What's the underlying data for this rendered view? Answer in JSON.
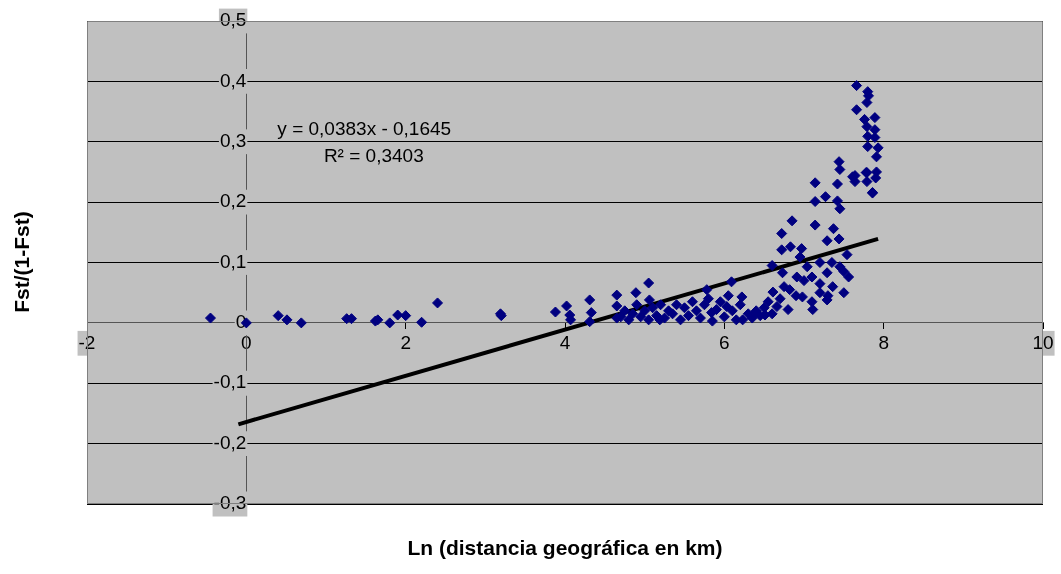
{
  "chart_data": {
    "type": "scatter",
    "xlabel": "Ln (distancia geográfica en km)",
    "ylabel": "Fst/(1-Fst)",
    "annotations": [
      "y = 0,0383x - 0,1645",
      "R² = 0,3403"
    ],
    "xlim": [
      -2,
      10
    ],
    "xticks": [
      -2,
      0,
      2,
      4,
      6,
      8,
      10
    ],
    "ylim": [
      -0.3,
      0.5
    ],
    "yticks": [
      {
        "value": -0.3,
        "label": "-0,3"
      },
      {
        "value": -0.2,
        "label": "-0,2"
      },
      {
        "value": -0.1,
        "label": "-0,1"
      },
      0,
      {
        "value": 0.1,
        "label": "0,1"
      },
      {
        "value": 0.2,
        "label": "0,2"
      },
      {
        "value": 0.3,
        "label": "0,3"
      },
      {
        "value": 0.4,
        "label": "0,4"
      },
      {
        "value": 0.5,
        "label": "0,5"
      }
    ],
    "grid": "y",
    "legend": false,
    "marker": "diamond",
    "series": [
      {
        "color": "#000080",
        "x": [
          -0.45,
          0,
          0.4,
          0.51,
          0.69,
          1.26,
          1.32,
          1.62,
          1.65,
          1.8,
          1.9,
          2.0,
          2.2,
          2.4,
          3.19,
          3.2,
          3.88,
          4.02,
          4.06,
          4.07,
          4.31,
          4.33,
          4.31,
          4.65,
          4.65,
          4.65,
          4.89,
          5.05,
          5.06,
          5.19,
          4.7,
          4.75,
          4.8,
          4.85,
          4.9,
          4.95,
          5.0,
          5.05,
          5.1,
          5.15,
          5.2,
          5.25,
          5.3,
          5.35,
          5.4,
          5.45,
          5.5,
          5.55,
          5.6,
          5.65,
          5.7,
          5.75,
          5.8,
          5.85,
          5.9,
          5.95,
          6.0,
          6.05,
          6.1,
          6.15,
          6.2,
          6.3,
          6.35,
          6.4,
          6.45,
          6.5,
          6.55,
          6.6,
          6.7,
          6.75,
          6.9,
          7.0,
          7.1,
          7.2,
          7.3,
          7.35,
          7.5,
          7.44,
          7.45,
          7.14,
          7.42,
          7.27,
          7.14,
          7.42,
          7.45,
          7.64,
          7.78,
          7.86,
          6.85,
          7.14,
          7.37,
          6.72,
          7.29,
          7.44,
          6.72,
          6.83,
          6.97,
          6.6,
          7.54,
          7.56,
          7.5,
          6.73,
          6.91,
          7.1,
          7.29,
          6.61,
          6.82,
          6.98,
          7.2,
          7.36,
          6.8,
          7.11,
          7.29,
          6.66,
          6.51,
          6.36,
          6.22,
          6.23,
          6.09,
          6.03,
          5.84,
          5.78,
          7.04,
          6.95,
          7.2,
          7.45,
          7.66,
          7.8,
          7.81,
          7.79,
          7.66,
          7.76,
          7.89,
          7.79,
          7.89,
          7.8,
          7.89,
          7.8,
          7.93,
          7.91,
          7.61,
          7.79,
          7.91,
          7.64,
          7.79,
          7.9,
          7.86
        ],
        "values": [
          0.008,
          0,
          0.012,
          0.005,
          0,
          0.007,
          0.007,
          0.003,
          0.005,
          0,
          0.013,
          0.012,
          0.001,
          0.033,
          0.015,
          0.012,
          0.018,
          0.028,
          0.013,
          0.005,
          0.038,
          0.017,
          0.002,
          0.046,
          0.028,
          0.008,
          0.05,
          0.066,
          0.038,
          0.005,
          0.01,
          0.02,
          0.005,
          0.015,
          0.03,
          0.01,
          0.02,
          0.005,
          0.025,
          0.012,
          0.03,
          0.008,
          0.02,
          0.015,
          0.03,
          0.005,
          0.025,
          0.012,
          0.035,
          0.02,
          0.008,
          0.03,
          0.04,
          0.003,
          0.022,
          0.035,
          0.01,
          0.045,
          0.02,
          0.005,
          0.03,
          0.015,
          0.008,
          0.02,
          0.012,
          0.025,
          0.035,
          0.015,
          0.04,
          0.06,
          0.045,
          0.07,
          0.035,
          0.065,
          0.045,
          0.1,
          0.085,
          0.267,
          0.254,
          0.232,
          0.23,
          0.209,
          0.201,
          0.202,
          0.189,
          0.244,
          0.249,
          0.215,
          0.169,
          0.162,
          0.156,
          0.148,
          0.136,
          0.139,
          0.121,
          0.126,
          0.123,
          0.095,
          0.113,
          0.076,
          0.05,
          0.083,
          0.076,
          0.076,
          0.083,
          0.051,
          0.055,
          0.043,
          0.05,
          0.06,
          0.022,
          0.022,
          0.038,
          0.027,
          0.013,
          0.013,
          0.043,
          0.005,
          0.068,
          0.027,
          0.017,
          0.055,
          0.093,
          0.109,
          0.1,
          0.093,
          0.393,
          0.383,
          0.376,
          0.365,
          0.353,
          0.337,
          0.34,
          0.325,
          0.32,
          0.309,
          0.307,
          0.292,
          0.29,
          0.275,
          0.242,
          0.249,
          0.25,
          0.234,
          0.234,
          0.24,
          0.216
        ]
      },
      {
        "type": "line",
        "color": "#000000",
        "marker": "none",
        "x": [
          -0.1,
          7.93
        ],
        "values": [
          -0.168,
          0.139
        ]
      }
    ]
  }
}
